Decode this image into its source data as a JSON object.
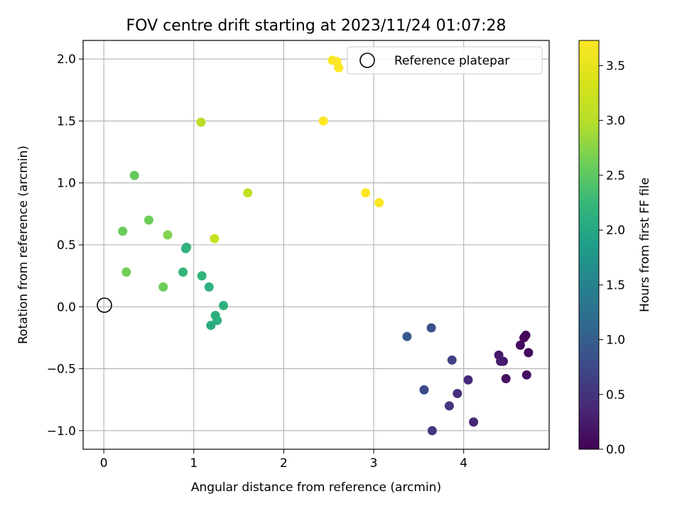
{
  "chart_data": {
    "type": "scatter",
    "title": "FOV centre drift starting at 2023/11/24 01:07:28",
    "xlabel": "Angular distance from reference (arcmin)",
    "ylabel": "Rotation from reference (arcmin)",
    "xlim": [
      -0.23,
      4.95
    ],
    "ylim": [
      -1.15,
      2.15
    ],
    "xticks": [
      0,
      1,
      2,
      3,
      4
    ],
    "yticks": [
      -1.0,
      -0.5,
      0.0,
      0.5,
      1.0,
      1.5,
      2.0
    ],
    "xtick_labels": [
      "0",
      "1",
      "2",
      "3",
      "4"
    ],
    "ytick_labels": [
      "−1.0",
      "−0.5",
      "0.0",
      "0.5",
      "1.0",
      "1.5",
      "2.0"
    ],
    "grid": true,
    "legend": {
      "position": "top-right",
      "entries": [
        "Reference platepar"
      ]
    },
    "reference_point": {
      "x": 0.0,
      "y": 0.0
    },
    "colorbar": {
      "label": "Hours from first FF file",
      "colormap": "viridis",
      "range": [
        0.0,
        3.73
      ],
      "ticks": [
        0.0,
        0.5,
        1.0,
        1.5,
        2.0,
        2.5,
        3.0,
        3.5
      ],
      "tick_labels": [
        "0.0",
        "0.5",
        "1.0",
        "1.5",
        "2.0",
        "2.5",
        "3.0",
        "3.5"
      ]
    },
    "points": [
      {
        "x": 4.69,
        "y": -0.23,
        "c": 0.02
      },
      {
        "x": 4.67,
        "y": -0.25,
        "c": 0.05
      },
      {
        "x": 4.72,
        "y": -0.37,
        "c": 0.08
      },
      {
        "x": 4.63,
        "y": -0.31,
        "c": 0.1
      },
      {
        "x": 4.7,
        "y": -0.55,
        "c": 0.12
      },
      {
        "x": 4.47,
        "y": -0.58,
        "c": 0.15
      },
      {
        "x": 4.44,
        "y": -0.44,
        "c": 0.2
      },
      {
        "x": 4.39,
        "y": -0.39,
        "c": 0.25
      },
      {
        "x": 4.41,
        "y": -0.44,
        "c": 0.28
      },
      {
        "x": 4.11,
        "y": -0.93,
        "c": 0.35
      },
      {
        "x": 4.05,
        "y": -0.59,
        "c": 0.4
      },
      {
        "x": 3.93,
        "y": -0.7,
        "c": 0.45
      },
      {
        "x": 3.84,
        "y": -0.8,
        "c": 0.5
      },
      {
        "x": 3.65,
        "y": -1.0,
        "c": 0.55
      },
      {
        "x": 3.87,
        "y": -0.43,
        "c": 0.65
      },
      {
        "x": 3.56,
        "y": -0.67,
        "c": 0.75
      },
      {
        "x": 3.64,
        "y": -0.17,
        "c": 0.85
      },
      {
        "x": 3.37,
        "y": -0.24,
        "c": 0.95
      },
      {
        "x": 1.19,
        "y": -0.15,
        "c": 2.05
      },
      {
        "x": 1.24,
        "y": -0.07,
        "c": 2.1
      },
      {
        "x": 1.26,
        "y": -0.11,
        "c": 2.12
      },
      {
        "x": 1.33,
        "y": 0.01,
        "c": 2.15
      },
      {
        "x": 1.17,
        "y": 0.16,
        "c": 2.15
      },
      {
        "x": 1.09,
        "y": 0.25,
        "c": 2.18
      },
      {
        "x": 0.88,
        "y": 0.28,
        "c": 2.2
      },
      {
        "x": 0.91,
        "y": 0.47,
        "c": 2.15
      },
      {
        "x": 0.92,
        "y": 0.48,
        "c": 2.18
      },
      {
        "x": 0.66,
        "y": 0.16,
        "c": 2.6
      },
      {
        "x": 0.25,
        "y": 0.28,
        "c": 2.62
      },
      {
        "x": 0.21,
        "y": 0.61,
        "c": 2.58
      },
      {
        "x": 0.5,
        "y": 0.7,
        "c": 2.6
      },
      {
        "x": 0.71,
        "y": 0.58,
        "c": 2.7
      },
      {
        "x": 0.34,
        "y": 1.06,
        "c": 2.55
      },
      {
        "x": 1.08,
        "y": 1.49,
        "c": 3.05
      },
      {
        "x": 1.6,
        "y": 0.92,
        "c": 3.15
      },
      {
        "x": 1.23,
        "y": 0.55,
        "c": 3.2
      },
      {
        "x": 2.44,
        "y": 1.5,
        "c": 3.72
      },
      {
        "x": 2.91,
        "y": 0.92,
        "c": 3.7
      },
      {
        "x": 3.06,
        "y": 0.84,
        "c": 3.72
      },
      {
        "x": 2.54,
        "y": 1.99,
        "c": 3.72
      },
      {
        "x": 2.59,
        "y": 1.98,
        "c": 3.72
      },
      {
        "x": 2.61,
        "y": 1.93,
        "c": 3.7
      }
    ]
  }
}
